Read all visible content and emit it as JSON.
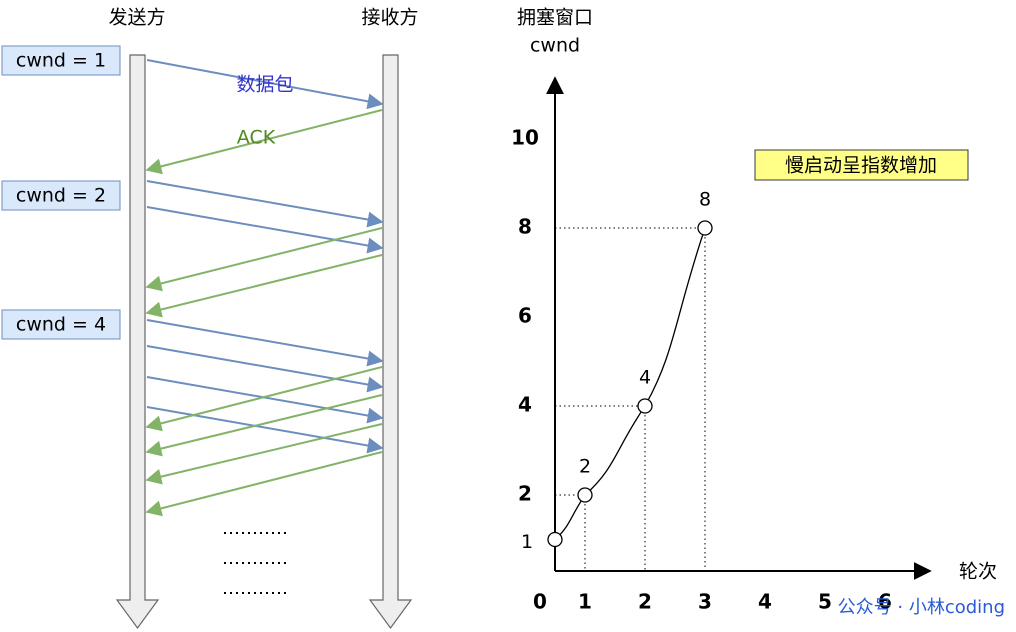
{
  "sender": "发送方",
  "receiver": "接收方",
  "cwnd_labels": [
    "cwnd = 1",
    "cwnd = 2",
    "cwnd = 4"
  ],
  "packet_label": "数据包",
  "ack_label": "ACK",
  "graph": {
    "y_title": "拥塞窗口",
    "y_unit": "cwnd",
    "x_title": "轮次",
    "xticks": [
      0,
      1,
      2,
      3,
      4,
      5,
      6
    ],
    "yticks": [
      2,
      4,
      6,
      8,
      10
    ],
    "points": {
      "x": [
        0,
        1,
        2,
        3
      ],
      "y": [
        1,
        2,
        4,
        8
      ]
    },
    "annotation": "慢启动呈指数增加"
  },
  "watermark": "公众号 · 小林coding"
}
